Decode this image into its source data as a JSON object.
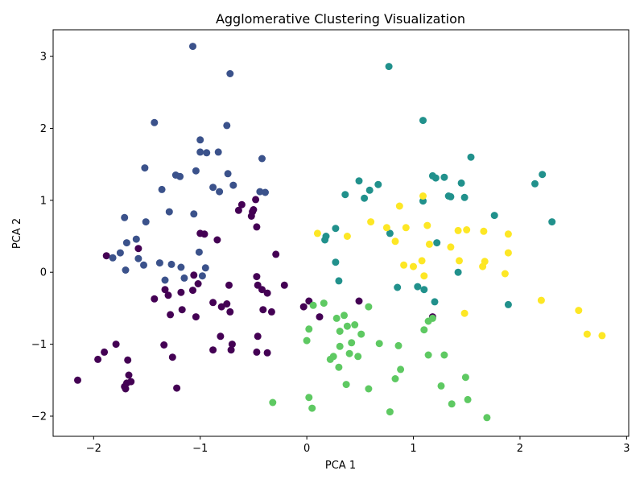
{
  "chart_data": {
    "type": "scatter",
    "title": "Agglomerative Clustering Visualization",
    "xlabel": "PCA 1",
    "ylabel": "PCA 2",
    "xlim": [
      -2.38,
      3.02
    ],
    "ylim": [
      -2.28,
      3.37
    ],
    "xticks": [
      -2,
      -1,
      0,
      1,
      2,
      3
    ],
    "yticks": [
      -2,
      -1,
      0,
      1,
      2,
      3
    ],
    "grid": false,
    "legend": false,
    "series": [
      {
        "color": "#440154",
        "points": [
          [
            -2.15,
            -1.5
          ],
          [
            -1.96,
            -1.21
          ],
          [
            -1.9,
            -1.11
          ],
          [
            -1.88,
            0.23
          ],
          [
            -1.79,
            -1.0
          ],
          [
            -1.71,
            -1.59
          ],
          [
            -1.7,
            -1.62
          ],
          [
            -1.69,
            -1.54
          ],
          [
            -1.68,
            -1.22
          ],
          [
            -1.67,
            -1.43
          ],
          [
            -1.65,
            -1.52
          ],
          [
            -1.58,
            0.33
          ],
          [
            -1.43,
            -0.37
          ],
          [
            -1.34,
            -1.01
          ],
          [
            -1.33,
            -0.24
          ],
          [
            -1.3,
            -0.32
          ],
          [
            -1.28,
            -0.59
          ],
          [
            -1.26,
            -1.18
          ],
          [
            -1.22,
            -1.61
          ],
          [
            -1.18,
            -0.28
          ],
          [
            -1.17,
            -0.52
          ],
          [
            -1.07,
            -0.25
          ],
          [
            -1.06,
            -0.04
          ],
          [
            -1.04,
            -0.62
          ],
          [
            -1.02,
            -0.16
          ],
          [
            -1.0,
            0.54
          ],
          [
            -0.96,
            0.53
          ],
          [
            -0.88,
            -0.42
          ],
          [
            -0.88,
            -1.08
          ],
          [
            -0.84,
            0.45
          ],
          [
            -0.81,
            -0.89
          ],
          [
            -0.8,
            -0.48
          ],
          [
            -0.75,
            -0.44
          ],
          [
            -0.73,
            -0.18
          ],
          [
            -0.72,
            -0.55
          ],
          [
            -0.71,
            -1.08
          ],
          [
            -0.7,
            -1.0
          ],
          [
            -0.64,
            0.86
          ],
          [
            -0.61,
            0.94
          ],
          [
            -0.52,
            0.78
          ],
          [
            -0.51,
            0.84
          ],
          [
            -0.5,
            0.87
          ],
          [
            -0.48,
            1.01
          ],
          [
            -0.47,
            0.63
          ],
          [
            -0.47,
            -0.06
          ],
          [
            -0.46,
            -0.18
          ],
          [
            -0.46,
            -0.89
          ],
          [
            -0.47,
            -1.11
          ],
          [
            -0.42,
            -0.24
          ],
          [
            -0.41,
            -0.52
          ],
          [
            -0.37,
            -0.29
          ],
          [
            -0.37,
            -1.12
          ],
          [
            -0.33,
            -0.55
          ],
          [
            -0.29,
            0.25
          ],
          [
            -0.21,
            -0.18
          ],
          [
            -0.03,
            -0.48
          ],
          [
            0.02,
            -0.4
          ],
          [
            0.12,
            -0.62
          ],
          [
            0.49,
            -0.4
          ],
          [
            1.18,
            -0.62
          ]
        ]
      },
      {
        "color": "#3b528b",
        "points": [
          [
            -1.82,
            0.2
          ],
          [
            -1.75,
            0.27
          ],
          [
            -1.71,
            0.76
          ],
          [
            -1.7,
            0.03
          ],
          [
            -1.69,
            0.41
          ],
          [
            -1.6,
            0.46
          ],
          [
            -1.58,
            0.19
          ],
          [
            -1.53,
            0.1
          ],
          [
            -1.51,
            0.7
          ],
          [
            -1.52,
            1.45
          ],
          [
            -1.43,
            2.08
          ],
          [
            -1.38,
            0.13
          ],
          [
            -1.36,
            1.15
          ],
          [
            -1.33,
            -0.11
          ],
          [
            -1.29,
            0.84
          ],
          [
            -1.27,
            0.11
          ],
          [
            -1.23,
            1.35
          ],
          [
            -1.18,
            0.07
          ],
          [
            -1.19,
            1.33
          ],
          [
            -1.15,
            -0.08
          ],
          [
            -1.07,
            3.14
          ],
          [
            -1.06,
            0.81
          ],
          [
            -1.04,
            1.41
          ],
          [
            -1.01,
            0.28
          ],
          [
            -1.0,
            1.84
          ],
          [
            -1.0,
            1.67
          ],
          [
            -0.98,
            -0.05
          ],
          [
            -0.95,
            0.06
          ],
          [
            -0.94,
            1.66
          ],
          [
            -0.88,
            1.18
          ],
          [
            -0.83,
            1.67
          ],
          [
            -0.82,
            1.12
          ],
          [
            -0.75,
            2.04
          ],
          [
            -0.74,
            1.37
          ],
          [
            -0.72,
            2.76
          ],
          [
            -0.69,
            1.21
          ],
          [
            -0.44,
            1.12
          ],
          [
            -0.42,
            1.58
          ],
          [
            -0.39,
            1.11
          ]
        ]
      },
      {
        "color": "#21918c",
        "points": [
          [
            0.17,
            0.45
          ],
          [
            0.18,
            0.5
          ],
          [
            0.27,
            0.61
          ],
          [
            0.27,
            0.14
          ],
          [
            0.3,
            -0.12
          ],
          [
            0.36,
            1.08
          ],
          [
            0.49,
            1.27
          ],
          [
            0.54,
            1.03
          ],
          [
            0.59,
            1.14
          ],
          [
            0.67,
            1.22
          ],
          [
            0.77,
            2.86
          ],
          [
            0.78,
            0.54
          ],
          [
            0.85,
            -0.21
          ],
          [
            1.04,
            -0.2
          ],
          [
            1.09,
            2.11
          ],
          [
            1.09,
            0.99
          ],
          [
            1.1,
            -0.24
          ],
          [
            1.18,
            1.34
          ],
          [
            1.2,
            -0.41
          ],
          [
            1.21,
            1.31
          ],
          [
            1.22,
            0.41
          ],
          [
            1.29,
            1.32
          ],
          [
            1.33,
            1.06
          ],
          [
            1.35,
            1.05
          ],
          [
            1.42,
            0.0
          ],
          [
            1.45,
            1.24
          ],
          [
            1.48,
            1.04
          ],
          [
            1.54,
            1.6
          ],
          [
            1.76,
            0.79
          ],
          [
            1.89,
            -0.45
          ],
          [
            2.14,
            1.23
          ],
          [
            2.21,
            1.36
          ],
          [
            2.3,
            0.7
          ]
        ]
      },
      {
        "color": "#5ec962",
        "points": [
          [
            -0.32,
            -1.81
          ],
          [
            0.0,
            -0.95
          ],
          [
            0.02,
            -0.79
          ],
          [
            0.02,
            -1.74
          ],
          [
            0.05,
            -1.89
          ],
          [
            0.06,
            -0.46
          ],
          [
            0.16,
            -0.43
          ],
          [
            0.22,
            -1.21
          ],
          [
            0.25,
            -1.17
          ],
          [
            0.28,
            -0.64
          ],
          [
            0.3,
            -1.32
          ],
          [
            0.31,
            -0.82
          ],
          [
            0.31,
            -1.03
          ],
          [
            0.35,
            -0.6
          ],
          [
            0.37,
            -1.56
          ],
          [
            0.38,
            -0.75
          ],
          [
            0.4,
            -1.13
          ],
          [
            0.42,
            -0.98
          ],
          [
            0.45,
            -0.73
          ],
          [
            0.48,
            -1.17
          ],
          [
            0.51,
            -0.86
          ],
          [
            0.58,
            -0.48
          ],
          [
            0.58,
            -1.62
          ],
          [
            0.68,
            -0.99
          ],
          [
            0.78,
            -1.94
          ],
          [
            0.83,
            -1.48
          ],
          [
            0.86,
            -1.02
          ],
          [
            0.88,
            -1.35
          ],
          [
            1.1,
            -0.8
          ],
          [
            1.14,
            -0.68
          ],
          [
            1.14,
            -1.15
          ],
          [
            1.18,
            -0.64
          ],
          [
            1.26,
            -1.58
          ],
          [
            1.29,
            -1.15
          ],
          [
            1.36,
            -1.83
          ],
          [
            1.49,
            -1.46
          ],
          [
            1.51,
            -1.77
          ],
          [
            1.69,
            -2.02
          ]
        ]
      },
      {
        "color": "#fde725",
        "points": [
          [
            0.1,
            0.54
          ],
          [
            0.38,
            0.5
          ],
          [
            0.6,
            0.7
          ],
          [
            0.75,
            0.62
          ],
          [
            0.83,
            0.43
          ],
          [
            0.87,
            0.92
          ],
          [
            0.91,
            0.1
          ],
          [
            0.93,
            0.62
          ],
          [
            1.0,
            0.08
          ],
          [
            1.08,
            0.16
          ],
          [
            1.09,
            1.06
          ],
          [
            1.1,
            -0.05
          ],
          [
            1.13,
            0.65
          ],
          [
            1.15,
            0.39
          ],
          [
            1.35,
            0.35
          ],
          [
            1.42,
            0.58
          ],
          [
            1.43,
            0.16
          ],
          [
            1.48,
            -0.57
          ],
          [
            1.5,
            0.59
          ],
          [
            1.65,
            0.08
          ],
          [
            1.66,
            0.57
          ],
          [
            1.67,
            0.15
          ],
          [
            1.86,
            -0.02
          ],
          [
            1.89,
            0.53
          ],
          [
            1.89,
            0.27
          ],
          [
            2.2,
            -0.39
          ],
          [
            2.55,
            -0.53
          ],
          [
            2.63,
            -0.86
          ],
          [
            2.77,
            -0.88
          ]
        ]
      }
    ]
  }
}
